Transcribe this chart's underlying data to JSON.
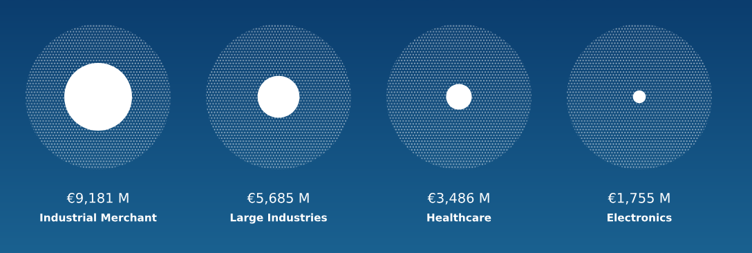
{
  "chart_data": {
    "type": "other",
    "categories": [
      "Industrial Merchant",
      "Large Industries",
      "Healthcare",
      "Electronics"
    ],
    "values": [
      9181,
      5685,
      3486,
      1755
    ],
    "value_labels": [
      "€9,181 M",
      "€5,685 M",
      "€3,486 M",
      "€1,755 M"
    ],
    "color": "#ffffff"
  }
}
